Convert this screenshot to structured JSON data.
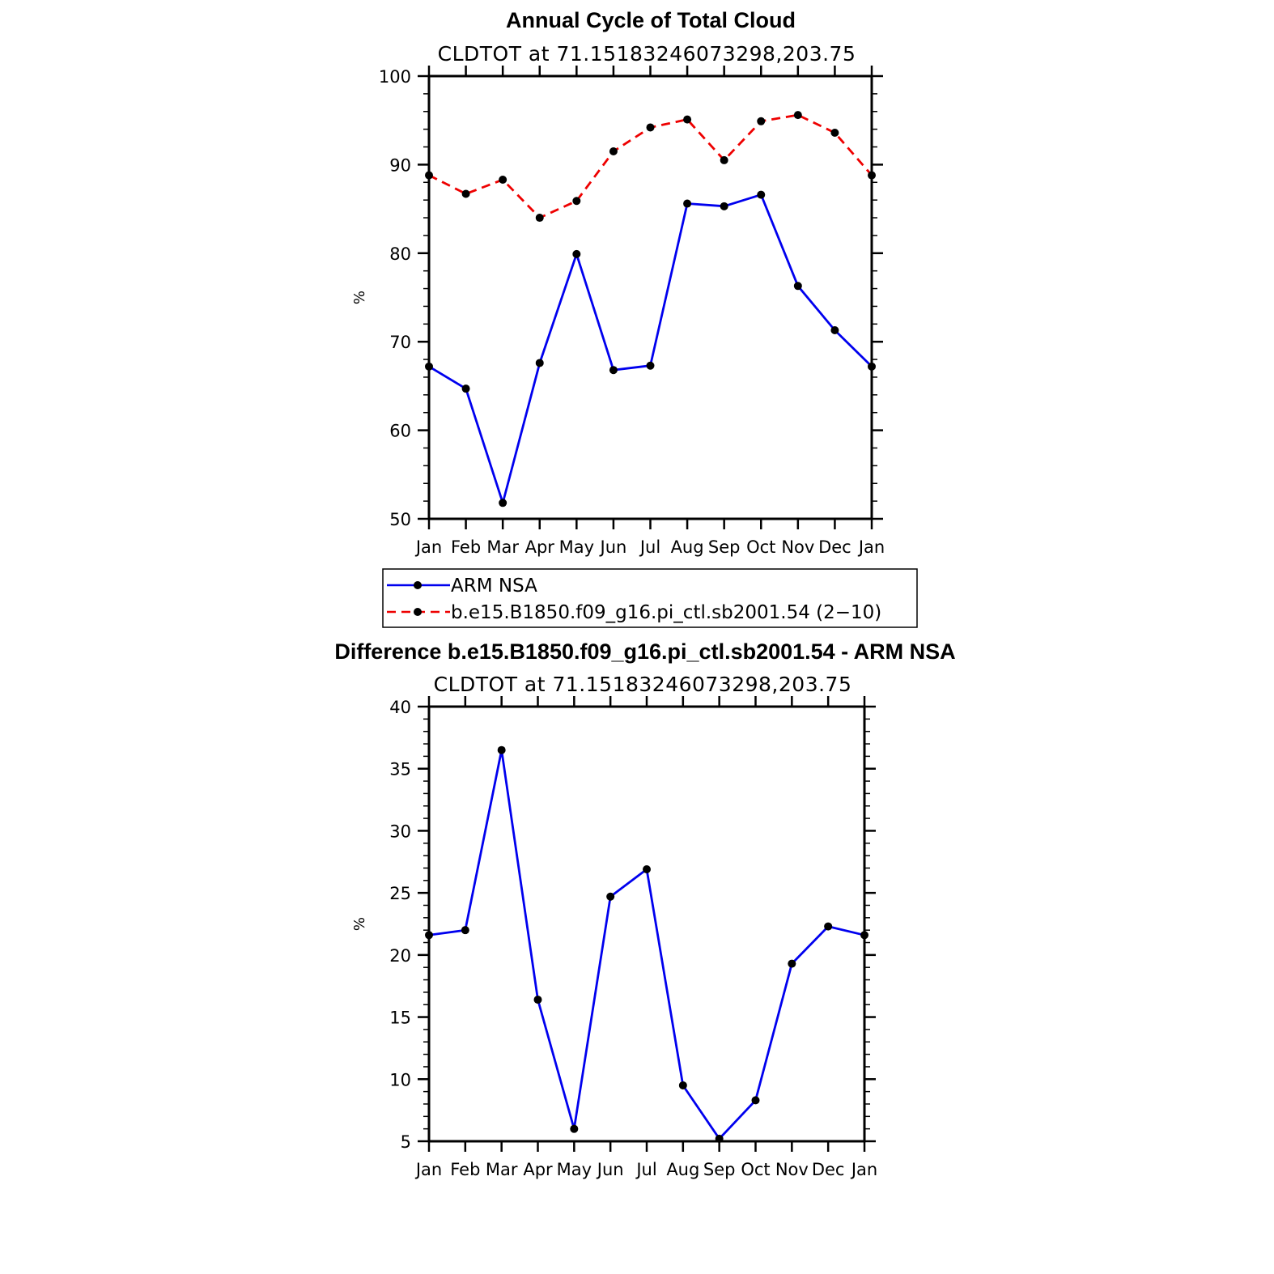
{
  "figure": {
    "top_title": "Annual Cycle of Total Cloud",
    "top_subtitle": "CLDTOT at 71.15183246073298,203.75",
    "bottom_title": "Difference b.e15.B1850.f09_g16.pi_ctl.sb2001.54 - ARM NSA",
    "bottom_subtitle": "CLDTOT at 71.15183246073298,203.75"
  },
  "colors": {
    "obs": "#0000ee",
    "model": "#ee0000",
    "marker": "#000000",
    "axis": "#000000"
  },
  "chart_data": [
    {
      "type": "line",
      "title": "Annual Cycle of Total Cloud",
      "subtitle": "CLDTOT at 71.15183246073298,203.75",
      "ylabel": "%",
      "xlabel": "",
      "categories": [
        "Jan",
        "Feb",
        "Mar",
        "Apr",
        "May",
        "Jun",
        "Jul",
        "Aug",
        "Sep",
        "Oct",
        "Nov",
        "Dec",
        "Jan"
      ],
      "ylim": [
        50,
        100
      ],
      "yticks": [
        50,
        60,
        70,
        80,
        90,
        100
      ],
      "yminor_step": 2,
      "grid": false,
      "legend_placement": "below",
      "series": [
        {
          "name": "ARM NSA",
          "style": "solid",
          "color_key": "obs",
          "values": [
            67.2,
            64.7,
            51.8,
            67.6,
            79.9,
            66.8,
            67.3,
            85.6,
            85.3,
            86.6,
            76.3,
            71.3,
            67.2
          ]
        },
        {
          "name": "b.e15.B1850.f09_g16.pi_ctl.sb2001.54 (2−10)",
          "style": "dashed",
          "color_key": "model",
          "values": [
            88.8,
            86.7,
            88.3,
            84.0,
            85.9,
            91.5,
            94.2,
            95.1,
            90.5,
            94.9,
            95.6,
            93.6,
            88.8
          ]
        }
      ]
    },
    {
      "type": "line",
      "title": "Difference b.e15.B1850.f09_g16.pi_ctl.sb2001.54 - ARM NSA",
      "subtitle": "CLDTOT at 71.15183246073298,203.75",
      "ylabel": "%",
      "xlabel": "",
      "categories": [
        "Jan",
        "Feb",
        "Mar",
        "Apr",
        "May",
        "Jun",
        "Jul",
        "Aug",
        "Sep",
        "Oct",
        "Nov",
        "Dec",
        "Jan"
      ],
      "ylim": [
        5,
        40
      ],
      "yticks": [
        5,
        10,
        15,
        20,
        25,
        30,
        35,
        40
      ],
      "yminor_step": 1,
      "grid": false,
      "series": [
        {
          "style": "solid",
          "color_key": "obs",
          "values": [
            21.6,
            22.0,
            36.5,
            16.4,
            6.0,
            24.7,
            26.9,
            9.5,
            5.2,
            8.3,
            19.3,
            22.3,
            21.6
          ]
        }
      ]
    }
  ]
}
